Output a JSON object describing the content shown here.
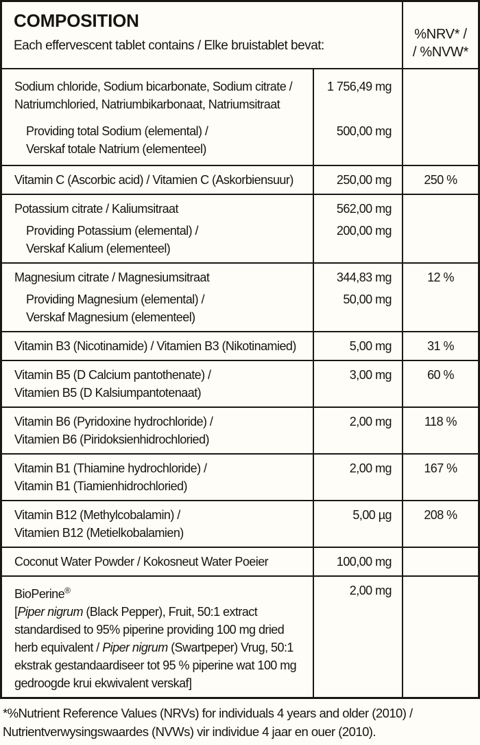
{
  "header": {
    "title": "COMPOSITION",
    "subtitle": "Each effervescent tablet contains / Elke bruistablet bevat:",
    "nrv_line1": "%NRV* /",
    "nrv_line2": "/ %NVW*"
  },
  "table": {
    "unit_note": "amounts use comma decimal separator as printed",
    "rows": [
      {
        "id": "sodium-blend",
        "cls": "gap-lg pad-lg",
        "groups": [
          {
            "lines": [
              "Sodium chloride, Sodium bicarbonate, Sodium citrate /",
              "Natriumchloried, Natriumbikarbonaat, Natriumsitraat"
            ],
            "indent": false,
            "amount": "1 756,49 mg"
          },
          {
            "lines": [
              "Providing total Sodium (elemental) /",
              "Verskaf totale Natrium (elementeel)"
            ],
            "indent": true,
            "amount": "500,00 mg"
          }
        ],
        "nrv": ""
      },
      {
        "id": "vitamin-c",
        "cls": "",
        "groups": [
          {
            "lines": [
              "Vitamin C (Ascorbic acid) / Vitamien C (Askorbiensuur)"
            ],
            "indent": false,
            "amount": "250,00 mg"
          }
        ],
        "nrv": "250 %"
      },
      {
        "id": "potassium",
        "cls": "",
        "groups": [
          {
            "lines": [
              "Potassium citrate / Kaliumsitraat"
            ],
            "indent": false,
            "amount": "562,00 mg"
          },
          {
            "lines": [
              "Providing Potassium (elemental) /",
              "Verskaf Kalium (elementeel)"
            ],
            "indent": true,
            "amount": "200,00 mg"
          }
        ],
        "nrv": ""
      },
      {
        "id": "magnesium",
        "cls": "",
        "groups": [
          {
            "lines": [
              "Magnesium citrate / Magnesiumsitraat"
            ],
            "indent": false,
            "amount": "344,83 mg"
          },
          {
            "lines": [
              "Providing Magnesium (elemental) /",
              "Verskaf Magnesium (elementeel)"
            ],
            "indent": true,
            "amount": "50,00 mg"
          }
        ],
        "nrv": "12 %"
      },
      {
        "id": "vitamin-b3",
        "cls": "",
        "groups": [
          {
            "lines": [
              "Vitamin B3 (Nicotinamide) / Vitamien B3 (Nikotinamied)"
            ],
            "indent": false,
            "amount": "5,00 mg"
          }
        ],
        "nrv": "31 %"
      },
      {
        "id": "vitamin-b5",
        "cls": "",
        "groups": [
          {
            "lines": [
              "Vitamin B5 (D Calcium pantothenate) /",
              "Vitamien B5 (D Kalsiumpantotenaat)"
            ],
            "indent": false,
            "amount": "3,00 mg"
          }
        ],
        "nrv": "60 %"
      },
      {
        "id": "vitamin-b6",
        "cls": "",
        "groups": [
          {
            "lines": [
              "Vitamin B6 (Pyridoxine hydrochloride) /",
              "Vitamien B6 (Piridoksienhidrochloried)"
            ],
            "indent": false,
            "amount": "2,00 mg"
          }
        ],
        "nrv": "118 %"
      },
      {
        "id": "vitamin-b1",
        "cls": "",
        "groups": [
          {
            "lines": [
              "Vitamin B1 (Thiamine hydrochloride) /",
              "Vitamin B1 (Tiamienhidrochloried)"
            ],
            "indent": false,
            "amount": "2,00 mg"
          }
        ],
        "nrv": "167 %"
      },
      {
        "id": "vitamin-b12",
        "cls": "",
        "groups": [
          {
            "lines": [
              "Vitamin B12 (Methylcobalamin) /",
              "Vitamien B12 (Metielkobalamien)"
            ],
            "indent": false,
            "amount": "5,00 µg"
          }
        ],
        "nrv": "208 %"
      },
      {
        "id": "coconut-water",
        "cls": "",
        "groups": [
          {
            "lines": [
              "Coconut Water Powder / Kokosneut Water Poeier"
            ],
            "indent": false,
            "amount": "100,00 mg"
          }
        ],
        "nrv": ""
      },
      {
        "id": "bioperine",
        "cls": "",
        "groups": [
          {
            "lines": [
              [
                {
                  "t": "BioPerine"
                },
                {
                  "t": "®",
                  "sup": true
                }
              ],
              [
                {
                  "t": "["
                },
                {
                  "t": "Piper nigrum",
                  "i": true
                },
                {
                  "t": " (Black Pepper), Fruit, 50:1 extract"
                }
              ],
              "standardised to 95% piperine providing 100 mg dried",
              [
                {
                  "t": "herb equivalent / "
                },
                {
                  "t": "Piper nigrum",
                  "i": true
                },
                {
                  "t": " (Swartpeper) Vrug, 50:1"
                }
              ],
              "ekstrak gestandaardiseer tot 95 % piperine wat 100 mg",
              "gedroogde krui ekwivalent verskaf]"
            ],
            "indent": false,
            "amount": "2,00 mg"
          }
        ],
        "nrv": ""
      }
    ]
  },
  "footnote": {
    "line1": "*%Nutrient Reference Values (NRVs) for individuals 4 years and older (2010) /",
    "line2": "Nutrientverwysingswaardes (NVWs) vir individue 4 jaar en ouer (2010)."
  },
  "colors": {
    "border": "#1a1812",
    "background": "#fefdf8",
    "text": "#16140e"
  }
}
